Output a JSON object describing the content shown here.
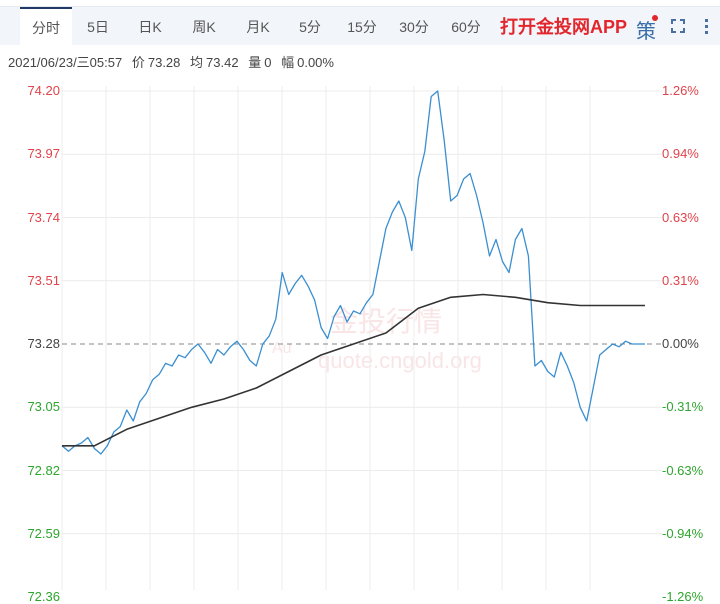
{
  "tabs": [
    {
      "label": "分时",
      "active": true
    },
    {
      "label": "5日"
    },
    {
      "label": "日K"
    },
    {
      "label": "周K"
    },
    {
      "label": "月K"
    },
    {
      "label": "5分"
    },
    {
      "label": "15分"
    },
    {
      "label": "30分"
    },
    {
      "label": "60分"
    }
  ],
  "promo_label": "打开金投网APP",
  "strategy_label": "策",
  "icons": {
    "fullscreen": "fullscreen-icon",
    "more": "more-vertical-icon",
    "strategy": "strategy-icon"
  },
  "info": {
    "datetime": "2021/06/23/三05:57",
    "price_label": "价",
    "price": "73.28",
    "avg_label": "均",
    "avg": "73.42",
    "vol_label": "量",
    "vol": "0",
    "chg_label": "幅",
    "chg": "0.00%"
  },
  "watermark": {
    "brand": "金投行情",
    "url": "quote.cngold.org",
    "badge": "Au"
  },
  "colors": {
    "up": "#e0434a",
    "down": "#2ea52e",
    "price_line": "#3b8fd0",
    "avg_line": "#333333",
    "grid": "#ececec",
    "accent": "#e3262c"
  },
  "chart_data": {
    "type": "line",
    "title": "分时",
    "xlabel": "",
    "ylabel": "",
    "ylim": [
      72.36,
      74.2
    ],
    "base_price": 73.28,
    "left_ticks": [
      "74.20",
      "73.97",
      "73.74",
      "73.51",
      "73.28",
      "73.05",
      "72.82",
      "72.59",
      "72.36"
    ],
    "right_ticks": [
      "1.26%",
      "0.94%",
      "0.63%",
      "0.31%",
      "0.00%",
      "-0.31%",
      "-0.63%",
      "-0.94%",
      "-1.26%"
    ],
    "grid": true,
    "series": [
      {
        "name": "price",
        "x": [
          0,
          2,
          4,
          6,
          8,
          10,
          12,
          14,
          16,
          18,
          20,
          22,
          24,
          26,
          28,
          30,
          32,
          34,
          36,
          38,
          40,
          42,
          44,
          46,
          48,
          50,
          52,
          54,
          56,
          58,
          60,
          62,
          64,
          66,
          68,
          70,
          72,
          74,
          76,
          78,
          80,
          82,
          84,
          86,
          88,
          90,
          92,
          94,
          96,
          98,
          100,
          102,
          104,
          106,
          108,
          110,
          112,
          114,
          116,
          118,
          120,
          122,
          124,
          126,
          128,
          130,
          132,
          134,
          136,
          138,
          140,
          142,
          144,
          146,
          148,
          150,
          152,
          154,
          156,
          158,
          160,
          162,
          164,
          166,
          168,
          170,
          172,
          174,
          176,
          178,
          180
        ],
        "values": [
          72.91,
          72.89,
          72.91,
          72.92,
          72.94,
          72.9,
          72.88,
          72.91,
          72.96,
          72.98,
          73.04,
          73.0,
          73.07,
          73.1,
          73.15,
          73.17,
          73.21,
          73.2,
          73.24,
          73.23,
          73.26,
          73.28,
          73.25,
          73.21,
          73.26,
          73.24,
          73.27,
          73.29,
          73.26,
          73.22,
          73.2,
          73.28,
          73.31,
          73.37,
          73.54,
          73.46,
          73.5,
          73.53,
          73.49,
          73.44,
          73.34,
          73.3,
          73.38,
          73.42,
          73.36,
          73.4,
          73.39,
          73.43,
          73.46,
          73.58,
          73.7,
          73.76,
          73.8,
          73.74,
          73.62,
          73.88,
          73.98,
          74.18,
          74.2,
          74.02,
          73.8,
          73.82,
          73.88,
          73.9,
          73.82,
          73.72,
          73.6,
          73.66,
          73.58,
          73.54,
          73.66,
          73.7,
          73.6,
          73.2,
          73.22,
          73.18,
          73.16,
          73.25,
          73.2,
          73.14,
          73.05,
          73.0,
          73.12,
          73.24,
          73.26,
          73.28,
          73.27,
          73.29,
          73.28,
          73.28,
          73.28
        ]
      },
      {
        "name": "average",
        "x": [
          0,
          10,
          20,
          30,
          40,
          50,
          60,
          70,
          80,
          90,
          100,
          110,
          120,
          130,
          140,
          150,
          160,
          170,
          180
        ],
        "values": [
          72.91,
          72.91,
          72.97,
          73.01,
          73.05,
          73.08,
          73.12,
          73.18,
          73.24,
          73.28,
          73.32,
          73.41,
          73.45,
          73.46,
          73.45,
          73.43,
          73.42,
          73.42,
          73.42
        ]
      }
    ]
  }
}
